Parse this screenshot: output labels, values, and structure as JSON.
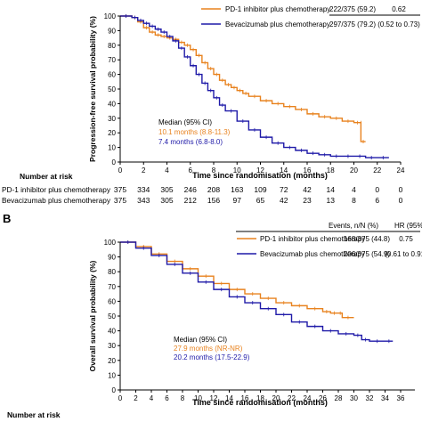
{
  "colors": {
    "pd1": "#E8821E",
    "bev": "#1F1AA8",
    "axis": "#000000"
  },
  "chart_data": [
    {
      "panel_label": "",
      "type": "line",
      "ylabel": "Progression-free survival probability (%)",
      "xlabel": "Time since randomisation (months)",
      "xlim": [
        0,
        24
      ],
      "ylim": [
        0,
        100
      ],
      "xticks": [
        0,
        2,
        4,
        6,
        8,
        10,
        12,
        14,
        16,
        18,
        20,
        22,
        24
      ],
      "yticks": [
        0,
        10,
        20,
        30,
        40,
        50,
        60,
        70,
        80,
        90,
        100
      ],
      "legend_header": {
        "events": "",
        "hr": ""
      },
      "median_title": "Median (95% CI)",
      "series": [
        {
          "name": "PD-1 inhibitor plus chemotherapy",
          "events": "222/375 (59.2)",
          "hr": "0.62",
          "median": "10.1 months (8.8-11.3)",
          "color_key": "pd1",
          "x": [
            0,
            1,
            1.5,
            2,
            2.5,
            3,
            3.5,
            4,
            4.5,
            5,
            5.5,
            6,
            6.5,
            7,
            7.5,
            8,
            8.5,
            9,
            9.5,
            10,
            10.5,
            11,
            12,
            13,
            14,
            15,
            16,
            17,
            18,
            19,
            20,
            20.6,
            20.6,
            21
          ],
          "y": [
            100,
            99,
            96,
            92,
            89,
            87,
            86,
            85,
            84,
            82,
            80,
            77,
            73,
            68,
            64,
            60,
            56,
            53,
            51,
            49,
            47,
            45,
            42,
            40,
            38,
            36,
            33,
            31,
            30,
            28,
            27,
            27,
            14,
            14
          ]
        },
        {
          "name": "Bevacizumab plus chemotherapy",
          "events": "297/375 (79.2)",
          "hr": "(0.52 to 0.73)",
          "median": "7.4 months (6.8-8.0)",
          "color_key": "bev",
          "x": [
            0,
            1,
            1.5,
            2,
            2.5,
            3,
            3.5,
            4,
            4.5,
            5,
            5.5,
            6,
            6.5,
            7,
            7.5,
            8,
            8.5,
            9,
            10,
            11,
            12,
            13,
            14,
            15,
            16,
            17,
            18,
            19,
            20,
            21,
            22,
            23
          ],
          "y": [
            100,
            99,
            97,
            95,
            93,
            91,
            89,
            86,
            83,
            78,
            72,
            66,
            60,
            54,
            49,
            44,
            39,
            35,
            28,
            22,
            17,
            13,
            10,
            8,
            6,
            5,
            4,
            4,
            4,
            3,
            3,
            3
          ]
        }
      ],
      "risk_table": {
        "title": "Number at risk",
        "rows": [
          {
            "label": "PD-1 inhibitor plus chemotherapy",
            "values": [
              "375",
              "334",
              "305",
              "246",
              "208",
              "163",
              "109",
              "72",
              "42",
              "14",
              "4",
              "0",
              "0"
            ]
          },
          {
            "label": "Bevacizumab plus chemotherapy",
            "values": [
              "375",
              "343",
              "305",
              "212",
              "156",
              "97",
              "65",
              "42",
              "23",
              "13",
              "8",
              "6",
              "0"
            ]
          }
        ]
      }
    },
    {
      "panel_label": "B",
      "type": "line",
      "ylabel": "Overall survival probability (%)",
      "xlabel": "Time since randomisation (months)",
      "xlim": [
        0,
        36
      ],
      "ylim": [
        0,
        100
      ],
      "xticks": [
        0,
        2,
        4,
        6,
        8,
        10,
        12,
        14,
        16,
        18,
        20,
        22,
        24,
        26,
        28,
        30,
        32,
        34,
        36
      ],
      "yticks": [
        0,
        10,
        20,
        30,
        40,
        50,
        60,
        70,
        80,
        90,
        100
      ],
      "legend_header": {
        "events": "Events, n/N (%)",
        "hr": "HR (95% CI)"
      },
      "median_title": "Median (95% CI)",
      "series": [
        {
          "name": "PD-1 inhibitor plus chemotherapy",
          "events": "168/375 (44.8)",
          "hr": "0.75",
          "median": "27.9 months (NR-NR)",
          "color_key": "pd1",
          "x": [
            0,
            2,
            4,
            6,
            8,
            10,
            12,
            14,
            16,
            18,
            20,
            22,
            24,
            26,
            27,
            28,
            28.5,
            30
          ],
          "y": [
            100,
            97,
            92,
            87,
            82,
            77,
            72,
            68,
            65,
            62,
            59,
            57,
            55,
            53,
            52,
            52,
            49,
            49
          ]
        },
        {
          "name": "Bevacizumab plus chemotherapy",
          "events": "206/375 (54.9)",
          "hr": "(0.61 to 0.91)",
          "median": "20.2 months (17.5-22.9)",
          "color_key": "bev",
          "x": [
            0,
            2,
            4,
            6,
            8,
            10,
            12,
            14,
            16,
            18,
            20,
            22,
            24,
            26,
            28,
            30,
            31,
            32,
            34,
            35
          ],
          "y": [
            100,
            96,
            91,
            85,
            79,
            73,
            68,
            63,
            59,
            55,
            51,
            46,
            43,
            40,
            38,
            37,
            34,
            33,
            33,
            33
          ]
        }
      ],
      "risk_table": {
        "title": "Number at risk",
        "rows": []
      }
    }
  ]
}
